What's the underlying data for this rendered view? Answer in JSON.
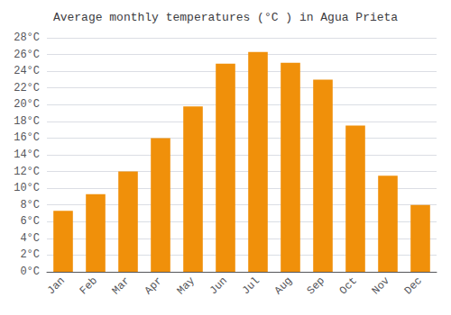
{
  "chart_data": {
    "type": "bar",
    "title": "Average monthly temperatures (°C ) in Agua Prieta",
    "categories": [
      "Jan",
      "Feb",
      "Mar",
      "Apr",
      "May",
      "Jun",
      "Jul",
      "Aug",
      "Sep",
      "Oct",
      "Nov",
      "Dec"
    ],
    "values": [
      7.3,
      9.3,
      12.0,
      16.0,
      19.8,
      24.9,
      26.3,
      25.0,
      23.0,
      17.5,
      11.5,
      8.0
    ],
    "color": "#F0900A",
    "ylim": [
      0,
      28
    ],
    "yticks": [
      {
        "value": 0,
        "label": "0°C"
      },
      {
        "value": 2,
        "label": "2°C"
      },
      {
        "value": 4,
        "label": "4°C"
      },
      {
        "value": 6,
        "label": "6°C"
      },
      {
        "value": 8,
        "label": "8°C"
      },
      {
        "value": 10,
        "label": "10°C"
      },
      {
        "value": 12,
        "label": "12°C"
      },
      {
        "value": 14,
        "label": "14°C"
      },
      {
        "value": 16,
        "label": "16°C"
      },
      {
        "value": 18,
        "label": "18°C"
      },
      {
        "value": 20,
        "label": "20°C"
      },
      {
        "value": 22,
        "label": "22°C"
      },
      {
        "value": 24,
        "label": "24°C"
      },
      {
        "value": 26,
        "label": "26°C"
      },
      {
        "value": 28,
        "label": "28°C"
      }
    ],
    "grid": true
  }
}
